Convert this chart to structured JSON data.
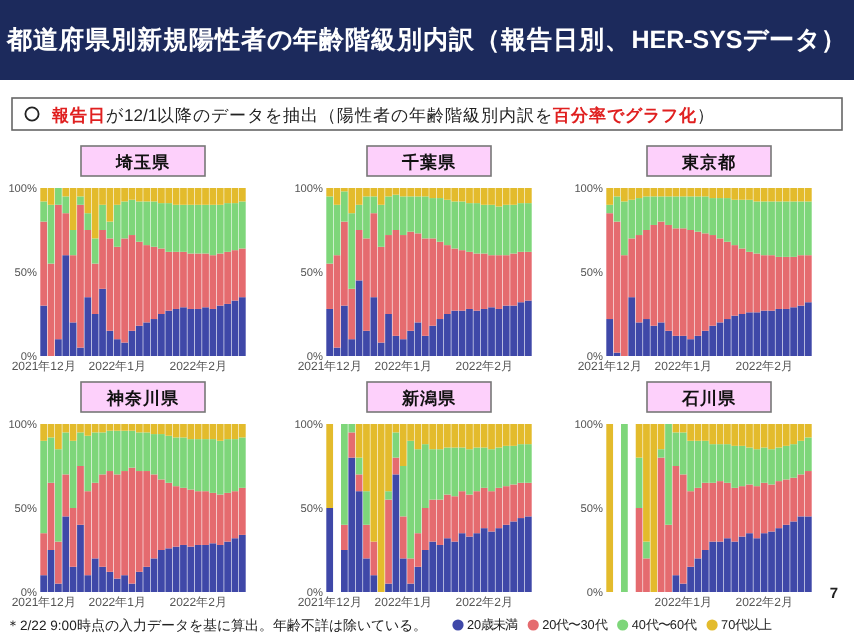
{
  "chart_data": [
    {
      "type": "other",
      "title": "都道府県別新規陽性者の年齢階級別内訳（報告日別、HER-SYSデータ）",
      "subtitle": "**報告日**が12/1以降のデータを抽出（陽性者の年齢階級別内訳を**百分率でグラフ化**）",
      "annotations": [
        "＊2/22 9:00時点の入力データを基に算出。年齢不詳は除いている。",
        "7"
      ]
    },
    {
      "type": "bar",
      "stacked": true,
      "title": "埼玉県",
      "legend": "bottom",
      "ylim": [
        0,
        100
      ],
      "yticks": [
        {
          "value": 0,
          "label": "0%"
        },
        {
          "value": 50,
          "label": "50%"
        },
        {
          "value": 100,
          "label": "100%"
        }
      ],
      "categories": [
        "2021年12月",
        null,
        null,
        null,
        null,
        null,
        null,
        null,
        null,
        null,
        "2022年1月",
        null,
        null,
        null,
        null,
        null,
        null,
        null,
        null,
        null,
        null,
        "2022年2月",
        null,
        null,
        null,
        null,
        null,
        null
      ],
      "series": [
        {
          "name": "20歳未満",
          "color": "#3f48a8",
          "values": [
            30,
            0,
            10,
            60,
            20,
            5,
            35,
            25,
            40,
            15,
            10,
            8,
            15,
            18,
            20,
            22,
            25,
            27,
            28,
            29,
            28,
            28,
            29,
            28,
            30,
            31,
            33,
            35
          ]
        },
        {
          "name": "20代〜30代",
          "color": "#e56b6f",
          "values": [
            50,
            55,
            80,
            25,
            40,
            85,
            40,
            30,
            35,
            55,
            55,
            62,
            57,
            50,
            46,
            43,
            39,
            35,
            34,
            33,
            33,
            33,
            32,
            32,
            31,
            31,
            30,
            29
          ]
        },
        {
          "name": "40代〜60代",
          "color": "#7ed67a",
          "values": [
            12,
            35,
            10,
            10,
            15,
            5,
            10,
            15,
            15,
            10,
            25,
            22,
            21,
            24,
            26,
            27,
            27,
            29,
            28,
            28,
            29,
            29,
            29,
            30,
            29,
            29,
            28,
            28
          ]
        },
        {
          "name": "70代以上",
          "color": "#e3bb2c",
          "values": [
            8,
            10,
            0,
            5,
            25,
            5,
            15,
            30,
            10,
            20,
            10,
            8,
            7,
            8,
            8,
            8,
            9,
            9,
            10,
            10,
            10,
            10,
            10,
            10,
            10,
            9,
            9,
            8
          ]
        }
      ]
    },
    {
      "type": "bar",
      "stacked": true,
      "title": "千葉県",
      "ylim": [
        0,
        100
      ],
      "yticks": [
        {
          "value": 0,
          "label": "0%"
        },
        {
          "value": 50,
          "label": "50%"
        },
        {
          "value": 100,
          "label": "100%"
        }
      ],
      "categories": [
        "2021年12月",
        null,
        null,
        null,
        null,
        null,
        null,
        null,
        null,
        null,
        "2022年1月",
        null,
        null,
        null,
        null,
        null,
        null,
        null,
        null,
        null,
        null,
        "2022年2月",
        null,
        null,
        null,
        null,
        null,
        null
      ],
      "series": [
        {
          "color": "#3f48a8",
          "values": [
            28,
            5,
            30,
            10,
            45,
            15,
            35,
            8,
            25,
            12,
            10,
            15,
            20,
            12,
            18,
            22,
            25,
            27,
            27,
            28,
            27,
            28,
            29,
            28,
            30,
            30,
            32,
            33
          ]
        },
        {
          "color": "#e56b6f",
          "values": [
            27,
            55,
            50,
            30,
            30,
            55,
            50,
            57,
            47,
            63,
            62,
            59,
            53,
            58,
            52,
            46,
            41,
            37,
            36,
            34,
            34,
            33,
            31,
            32,
            30,
            31,
            30,
            29
          ]
        },
        {
          "color": "#7ed67a",
          "values": [
            40,
            30,
            18,
            45,
            15,
            25,
            10,
            25,
            23,
            21,
            23,
            21,
            22,
            25,
            24,
            26,
            27,
            28,
            29,
            29,
            30,
            29,
            30,
            29,
            30,
            29,
            29,
            29
          ]
        },
        {
          "color": "#e3bb2c",
          "values": [
            5,
            10,
            2,
            15,
            10,
            5,
            5,
            10,
            5,
            4,
            5,
            5,
            5,
            5,
            6,
            6,
            7,
            8,
            8,
            9,
            9,
            10,
            10,
            11,
            10,
            10,
            9,
            9
          ]
        }
      ]
    },
    {
      "type": "bar",
      "stacked": true,
      "title": "東京都",
      "ylim": [
        0,
        100
      ],
      "yticks": [
        {
          "value": 0,
          "label": "0%"
        },
        {
          "value": 50,
          "label": "50%"
        },
        {
          "value": 100,
          "label": "100%"
        }
      ],
      "categories": [
        "2021年12月",
        null,
        null,
        null,
        null,
        null,
        null,
        null,
        null,
        null,
        "2022年1月",
        null,
        null,
        null,
        null,
        null,
        null,
        null,
        null,
        null,
        null,
        "2022年2月",
        null,
        null,
        null,
        null,
        null,
        null
      ],
      "series": [
        {
          "color": "#3f48a8",
          "values": [
            22,
            2,
            0,
            35,
            20,
            22,
            18,
            20,
            15,
            12,
            12,
            10,
            12,
            15,
            18,
            20,
            22,
            24,
            25,
            26,
            26,
            27,
            27,
            28,
            28,
            29,
            30,
            32
          ]
        },
        {
          "color": "#e56b6f",
          "values": [
            63,
            78,
            60,
            35,
            52,
            53,
            60,
            60,
            63,
            64,
            64,
            65,
            62,
            58,
            54,
            50,
            46,
            42,
            39,
            36,
            35,
            33,
            33,
            31,
            31,
            30,
            30,
            28
          ]
        },
        {
          "color": "#7ed67a",
          "values": [
            5,
            15,
            32,
            23,
            22,
            20,
            17,
            15,
            17,
            19,
            19,
            20,
            21,
            22,
            22,
            24,
            26,
            27,
            29,
            31,
            31,
            32,
            32,
            33,
            33,
            33,
            32,
            32
          ]
        },
        {
          "color": "#e3bb2c",
          "values": [
            10,
            5,
            8,
            7,
            6,
            5,
            5,
            5,
            5,
            5,
            5,
            5,
            5,
            5,
            6,
            6,
            6,
            7,
            7,
            7,
            8,
            8,
            8,
            8,
            8,
            8,
            8,
            8
          ]
        }
      ]
    },
    {
      "type": "bar",
      "stacked": true,
      "title": "神奈川県",
      "ylim": [
        0,
        100
      ],
      "yticks": [
        {
          "value": 0,
          "label": "0%"
        },
        {
          "value": 50,
          "label": "50%"
        },
        {
          "value": 100,
          "label": "100%"
        }
      ],
      "categories": [
        "2021年12月",
        null,
        null,
        null,
        null,
        null,
        null,
        null,
        null,
        null,
        "2022年1月",
        null,
        null,
        null,
        null,
        null,
        null,
        null,
        null,
        null,
        null,
        "2022年2月",
        null,
        null,
        null,
        null,
        null,
        null
      ],
      "series": [
        {
          "color": "#3f48a8",
          "values": [
            10,
            25,
            5,
            45,
            15,
            40,
            10,
            20,
            15,
            12,
            8,
            10,
            5,
            12,
            15,
            20,
            25,
            26,
            27,
            28,
            27,
            28,
            28,
            29,
            28,
            30,
            32,
            34
          ]
        },
        {
          "color": "#e56b6f",
          "values": [
            25,
            40,
            25,
            25,
            35,
            35,
            50,
            45,
            55,
            60,
            62,
            62,
            69,
            60,
            57,
            50,
            42,
            39,
            36,
            34,
            34,
            32,
            32,
            30,
            30,
            29,
            28,
            28
          ]
        },
        {
          "color": "#7ed67a",
          "values": [
            55,
            27,
            55,
            25,
            40,
            20,
            33,
            30,
            25,
            24,
            26,
            24,
            22,
            23,
            23,
            24,
            27,
            28,
            29,
            30,
            30,
            31,
            31,
            32,
            32,
            32,
            31,
            30
          ]
        },
        {
          "color": "#e3bb2c",
          "values": [
            10,
            8,
            15,
            5,
            10,
            5,
            7,
            5,
            5,
            4,
            4,
            4,
            4,
            5,
            5,
            6,
            6,
            7,
            8,
            8,
            9,
            9,
            9,
            9,
            10,
            9,
            9,
            8
          ]
        }
      ]
    },
    {
      "type": "bar",
      "stacked": true,
      "title": "新潟県",
      "ylim": [
        0,
        100
      ],
      "yticks": [
        {
          "value": 0,
          "label": "0%"
        },
        {
          "value": 50,
          "label": "50%"
        },
        {
          "value": 100,
          "label": "100%"
        }
      ],
      "categories": [
        "2021年12月",
        null,
        null,
        null,
        null,
        null,
        null,
        null,
        null,
        null,
        "2022年1月",
        null,
        null,
        null,
        null,
        null,
        null,
        null,
        null,
        null,
        null,
        "2022年2月",
        null,
        null,
        null,
        null,
        null,
        null
      ],
      "series": [
        {
          "color": "#3f48a8",
          "values": [
            50,
            null,
            25,
            80,
            60,
            20,
            10,
            0,
            5,
            70,
            20,
            5,
            15,
            25,
            30,
            28,
            32,
            30,
            35,
            33,
            35,
            38,
            36,
            38,
            40,
            42,
            44,
            45
          ]
        },
        {
          "color": "#e56b6f",
          "values": [
            0,
            null,
            15,
            15,
            10,
            20,
            20,
            0,
            50,
            10,
            25,
            15,
            20,
            25,
            25,
            27,
            26,
            27,
            25,
            25,
            25,
            24,
            24,
            24,
            23,
            22,
            21,
            20
          ]
        },
        {
          "color": "#7ed67a",
          "values": [
            0,
            null,
            60,
            5,
            10,
            20,
            0,
            0,
            5,
            15,
            30,
            70,
            50,
            38,
            30,
            30,
            28,
            29,
            26,
            27,
            26,
            24,
            25,
            24,
            24,
            23,
            23,
            23
          ]
        },
        {
          "color": "#e3bb2c",
          "values": [
            50,
            null,
            0,
            0,
            20,
            40,
            70,
            100,
            40,
            5,
            25,
            10,
            15,
            12,
            15,
            15,
            14,
            14,
            14,
            15,
            14,
            14,
            15,
            14,
            13,
            13,
            12,
            12
          ]
        }
      ]
    },
    {
      "type": "bar",
      "stacked": true,
      "title": "石川県",
      "ylim": [
        0,
        100
      ],
      "yticks": [
        {
          "value": 0,
          "label": "0%"
        },
        {
          "value": 50,
          "label": "50%"
        },
        {
          "value": 100,
          "label": "100%"
        }
      ],
      "categories": [
        null,
        null,
        null,
        null,
        null,
        null,
        null,
        null,
        null,
        null,
        "2022年1月",
        null,
        null,
        null,
        null,
        null,
        null,
        null,
        null,
        null,
        null,
        "2022年2月",
        null,
        null,
        null,
        null,
        null,
        null
      ],
      "series": [
        {
          "color": "#3f48a8",
          "values": [
            0,
            null,
            0,
            null,
            0,
            0,
            0,
            0,
            0,
            10,
            5,
            15,
            20,
            25,
            30,
            30,
            32,
            30,
            33,
            35,
            32,
            35,
            36,
            38,
            40,
            42,
            45,
            45
          ]
        },
        {
          "color": "#e56b6f",
          "values": [
            0,
            null,
            0,
            null,
            50,
            20,
            0,
            80,
            40,
            65,
            65,
            45,
            42,
            40,
            35,
            36,
            33,
            32,
            30,
            29,
            31,
            30,
            28,
            28,
            27,
            26,
            25,
            27
          ]
        },
        {
          "color": "#7ed67a",
          "values": [
            0,
            null,
            100,
            null,
            30,
            10,
            0,
            5,
            60,
            20,
            25,
            30,
            28,
            25,
            23,
            22,
            23,
            25,
            24,
            22,
            22,
            21,
            21,
            20,
            20,
            20,
            20,
            20
          ]
        },
        {
          "color": "#e3bb2c",
          "values": [
            100,
            null,
            0,
            null,
            20,
            70,
            100,
            15,
            0,
            5,
            5,
            10,
            10,
            10,
            12,
            12,
            12,
            13,
            13,
            14,
            15,
            14,
            15,
            14,
            13,
            12,
            10,
            8
          ]
        }
      ]
    }
  ]
}
